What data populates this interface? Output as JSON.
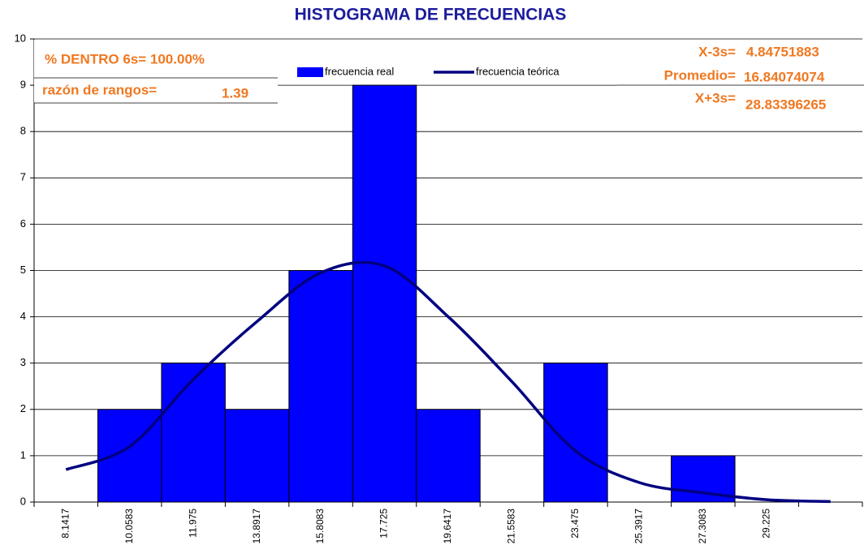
{
  "chart_data": {
    "type": "bar",
    "title": "HISTOGRAMA DE FRECUENCIAS",
    "categories": [
      "8.1417",
      "10.0583",
      "11.975",
      "13.8917",
      "15.8083",
      "17.725",
      "19.6417",
      "21.5583",
      "23.475",
      "25.3917",
      "27.3083",
      "29.225",
      null
    ],
    "series": [
      {
        "name": "frecuencia real",
        "type": "bar",
        "color": "#0000ff",
        "values": [
          0,
          2,
          3,
          2,
          5,
          9,
          2,
          0,
          3,
          0,
          1,
          0,
          0
        ]
      },
      {
        "name": "frecuencia teórica",
        "type": "line",
        "color": "#000080",
        "values": [
          0.7,
          1.2,
          2.65,
          3.9,
          4.95,
          5.1,
          4.0,
          2.6,
          1.1,
          0.42,
          0.2,
          0.05,
          0.01
        ]
      }
    ],
    "ylim": [
      0,
      10
    ],
    "yticks": [
      0,
      1,
      2,
      3,
      4,
      5,
      6,
      7,
      8,
      9,
      10
    ],
    "grid": true,
    "legend": "top",
    "annotations": [
      "% DENTRO 6s= 100.00%",
      "razón de rangos=",
      "1.39",
      "X-3s=",
      "4.84751883",
      "Promedio=",
      "16.84074074",
      "X+3s=",
      "28.83396265"
    ]
  }
}
